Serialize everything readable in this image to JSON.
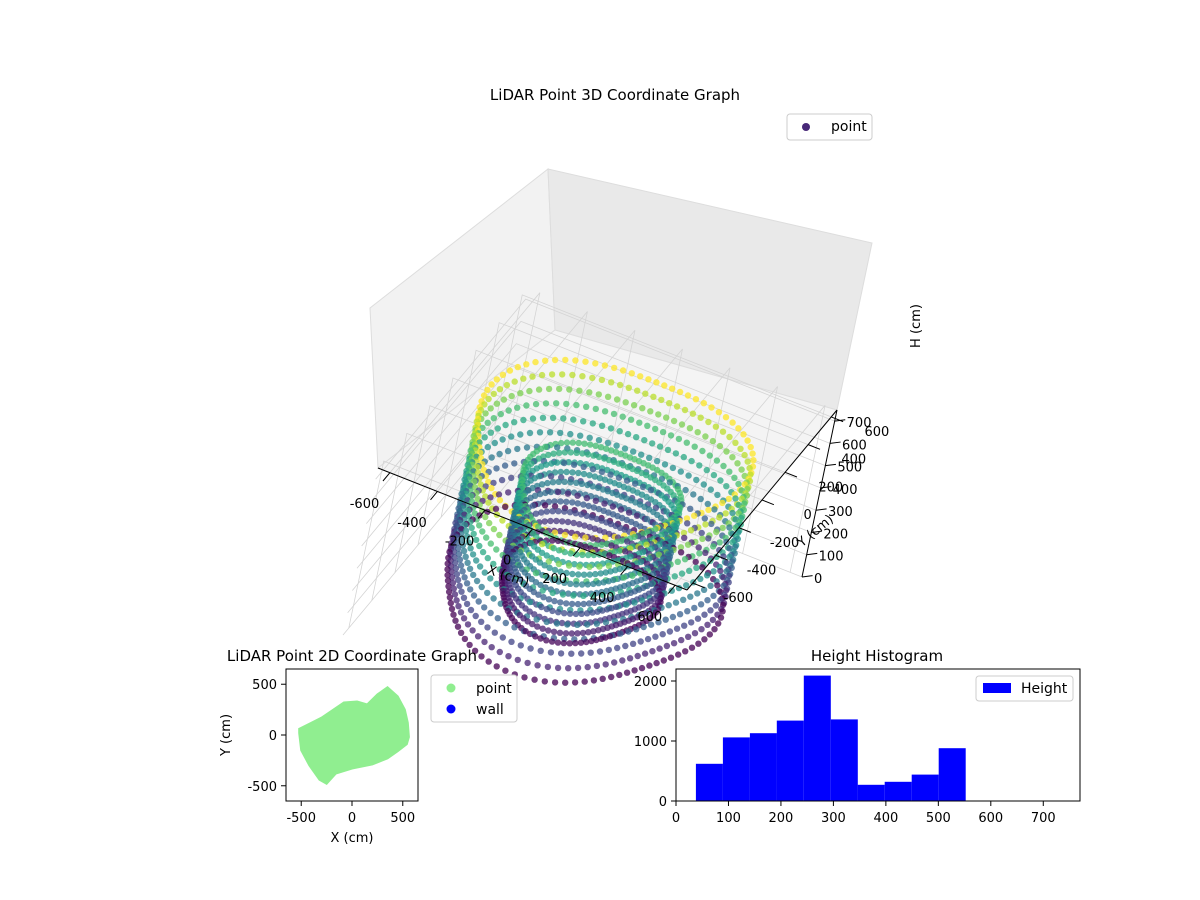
{
  "chart_data": [
    {
      "type": "scatter",
      "dimensions": 3,
      "title": "LiDAR Point 3D Coordinate Graph",
      "xlabel": "X (cm)",
      "ylabel": "Y (cm)",
      "zlabel": "H (cm)",
      "xlim": [
        -650,
        650
      ],
      "ylim": [
        -650,
        650
      ],
      "zlim": [
        750,
        0
      ],
      "z_axis_inverted": true,
      "xticks": [
        -600,
        -400,
        -200,
        0,
        200,
        400,
        600
      ],
      "yticks": [
        -600,
        -400,
        -200,
        0,
        200,
        400,
        600
      ],
      "zticks": [
        0,
        100,
        200,
        300,
        400,
        500,
        600,
        700
      ],
      "grid": true,
      "colormap": "viridis (colored by height)",
      "series": [
        {
          "name": "point",
          "color": "#482878"
        }
      ],
      "legend_position": "upper-right",
      "surfaces": [
        {
          "shape": "ring wall",
          "center": [
            0,
            0
          ],
          "radius": 520,
          "h_top": 50,
          "h_bottom": 700
        },
        {
          "shape": "inner wall",
          "center": [
            0,
            0
          ],
          "radius": 300,
          "h_top": 60,
          "h_bottom": 500
        }
      ]
    },
    {
      "type": "scatter",
      "title": "LiDAR Point 2D Coordinate Graph",
      "xlabel": "X (cm)",
      "ylabel": "Y (cm)",
      "xlim": [
        -650,
        650
      ],
      "ylim": [
        -650,
        650
      ],
      "xticks": [
        -500,
        0,
        500
      ],
      "yticks": [
        -500,
        0,
        500
      ],
      "series": [
        {
          "name": "point",
          "color": "#90ee90"
        },
        {
          "name": "wall",
          "color": "#0000ff"
        }
      ],
      "legend_position": "outside-right",
      "point_region": [
        [
          -520,
          20
        ],
        [
          -500,
          -150
        ],
        [
          -420,
          -300
        ],
        [
          -320,
          -440
        ],
        [
          -250,
          -480
        ],
        [
          -160,
          -380
        ],
        [
          0,
          -330
        ],
        [
          200,
          -290
        ],
        [
          350,
          -230
        ],
        [
          450,
          -160
        ],
        [
          540,
          -90
        ],
        [
          560,
          -20
        ],
        [
          550,
          120
        ],
        [
          520,
          250
        ],
        [
          450,
          380
        ],
        [
          350,
          470
        ],
        [
          250,
          400
        ],
        [
          150,
          300
        ],
        [
          50,
          330
        ],
        [
          -80,
          320
        ],
        [
          -300,
          170
        ],
        [
          -400,
          120
        ],
        [
          -520,
          60
        ]
      ]
    },
    {
      "type": "histogram",
      "title": "Height Histogram",
      "xlabel": "",
      "ylabel": "",
      "xlim": [
        0,
        770
      ],
      "ylim": [
        0,
        2200
      ],
      "xticks": [
        0,
        100,
        200,
        300,
        400,
        500,
        600,
        700
      ],
      "yticks": [
        0,
        1000,
        2000
      ],
      "color": "#0000ff",
      "series": [
        {
          "name": "Height"
        }
      ],
      "legend_position": "upper-right",
      "bin_edges": [
        38,
        89.4,
        140.8,
        192.2,
        243.6,
        295,
        346.4,
        397.8,
        449.2,
        500.6,
        552
      ],
      "counts": [
        620,
        1060,
        1130,
        1340,
        2090,
        1360,
        270,
        320,
        440,
        880
      ]
    }
  ]
}
